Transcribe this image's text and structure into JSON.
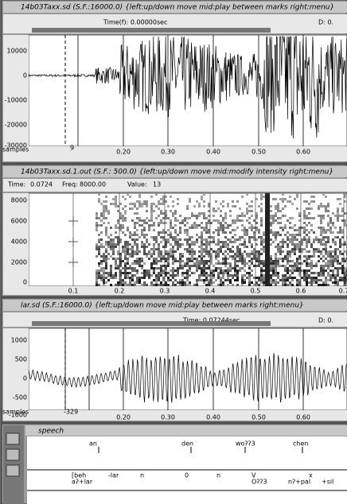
{
  "windows": [
    {
      "title": "14b03Taxx.sd (S.F.:16000.0) {left:up/down move  mid:play between marks  right:menu}",
      "status": [
        "Time(f):  0.00000sec",
        "D: 0."
      ],
      "y_labels": [
        "10000",
        "0",
        "-10000",
        "-20000",
        "-30000"
      ],
      "x_labels": [
        "0.20",
        "0.30",
        "0.40",
        "0.50",
        "0.60"
      ],
      "footer": [
        "samples",
        "9"
      ]
    },
    {
      "title": "14b03Taxx.sd.1.out (S.F.: 500.0) {left:up/down move  mid:modify intensity  right:menu}",
      "status": [
        "Time:",
        "0.0724",
        "Freq:",
        "8000.00",
        "Value:",
        "13"
      ],
      "y_labels": [
        "8000",
        "6000",
        "4000",
        "2000",
        "0"
      ],
      "x_labels": [
        "0.1",
        "0.2",
        "0.3",
        "0.4",
        "0.5",
        "0.6",
        "0.7"
      ],
      "footer": []
    },
    {
      "title": "lar.sd (S.F.:16000.0) {left:up/down move  mid:play between marks  right:menu}",
      "status": [
        "Time:  0.07244sec",
        "D: 0."
      ],
      "y_labels": [
        "1000",
        "500",
        "0",
        "-500",
        "-1000"
      ],
      "x_labels": [
        "0.20",
        "0.30",
        "0.40",
        "0.50",
        "0.60"
      ],
      "footer": [
        "samples",
        "-329"
      ]
    }
  ],
  "speech": {
    "title": "speech",
    "tier1": [
      "an",
      "den",
      "woʔʔ3",
      "chen"
    ],
    "tier2a": [
      "[beh",
      "-lar",
      "n",
      "0",
      "n",
      "V",
      "x"
    ],
    "tier2b": [
      "aʔ+lar",
      "Oʔʔ3",
      "nʔ+pal",
      "+sil"
    ]
  }
}
